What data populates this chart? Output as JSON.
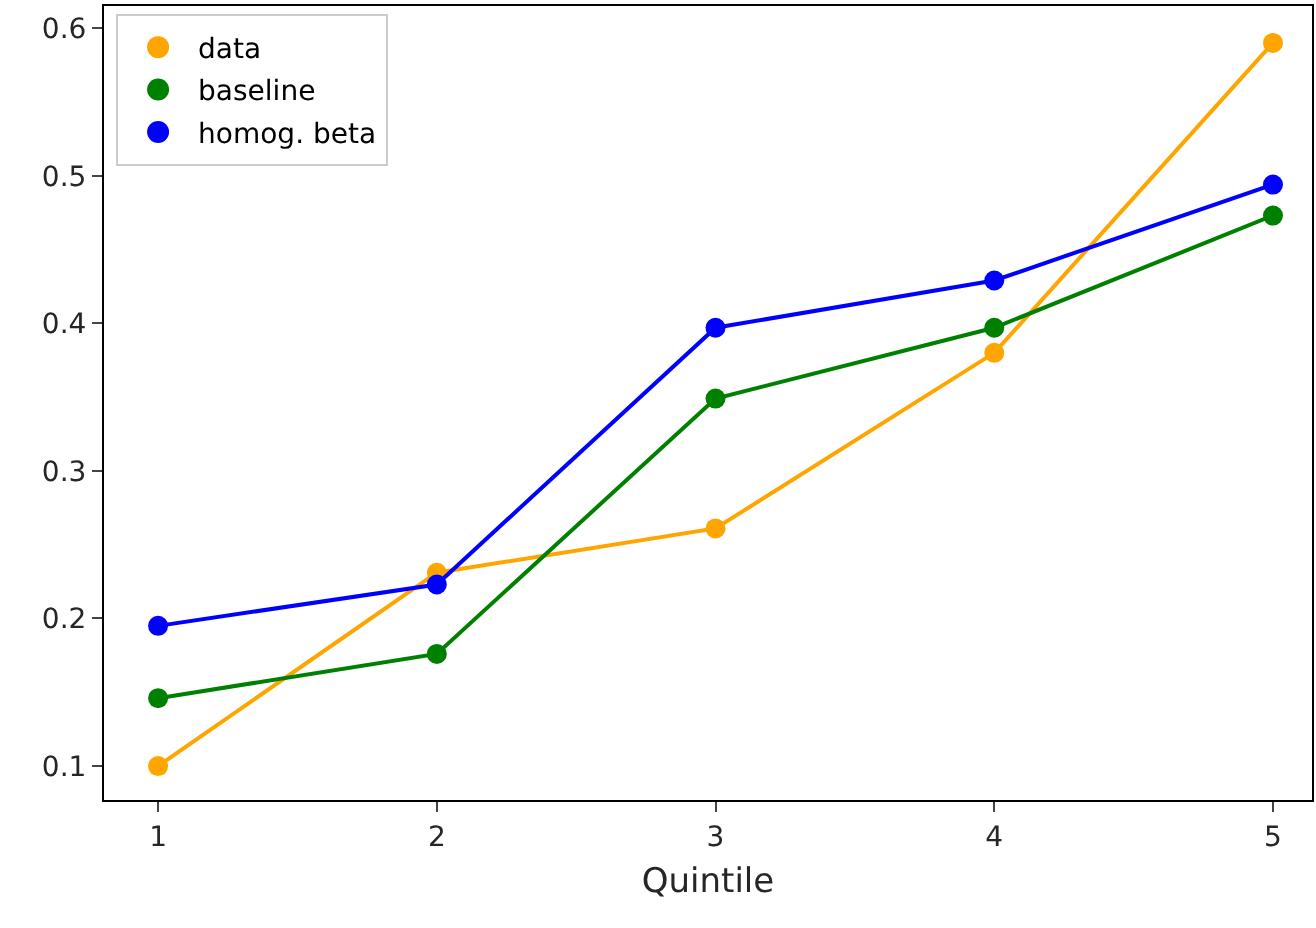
{
  "chart_data": {
    "type": "line",
    "xlabel": "Quintile",
    "x": [
      1,
      2,
      3,
      4,
      5
    ],
    "series": [
      {
        "name": "data",
        "color": "#ffa500",
        "values": [
          0.1,
          0.231,
          0.261,
          0.38,
          0.59
        ]
      },
      {
        "name": "baseline",
        "color": "#008000",
        "values": [
          0.146,
          0.176,
          0.349,
          0.397,
          0.473
        ]
      },
      {
        "name": "homog. beta",
        "color": "#0000ff",
        "values": [
          0.195,
          0.223,
          0.397,
          0.429,
          0.494
        ]
      }
    ],
    "xlim": [
      0.806,
      5.14
    ],
    "xticks": [
      1,
      2,
      3,
      4,
      5
    ],
    "ylim": [
      0.077,
      0.615
    ],
    "yticks": [
      {
        "value": 0.1,
        "label": "0.1"
      },
      {
        "value": 0.2,
        "label": "0.2"
      },
      {
        "value": 0.3,
        "label": "0.3"
      },
      {
        "value": 0.4,
        "label": "0.4"
      },
      {
        "value": 0.5,
        "label": "0.5"
      },
      {
        "value": 0.6,
        "label": "0.6"
      }
    ],
    "grid": false,
    "legend": "top left",
    "marker": "circle",
    "line_style": "solid"
  }
}
